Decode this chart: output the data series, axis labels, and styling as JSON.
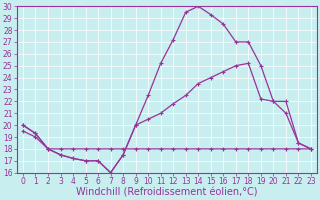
{
  "title": "",
  "xlabel": "Windchill (Refroidissement éolien,°C)",
  "ylabel": "",
  "bg_color": "#c8eef0",
  "line_color": "#993399",
  "grid_color": "#ffffff",
  "xlim": [
    -0.5,
    23.5
  ],
  "ylim": [
    16,
    30
  ],
  "xticks": [
    0,
    1,
    2,
    3,
    4,
    5,
    6,
    7,
    8,
    9,
    10,
    11,
    12,
    13,
    14,
    15,
    16,
    17,
    18,
    19,
    20,
    21,
    22,
    23
  ],
  "yticks": [
    16,
    17,
    18,
    19,
    20,
    21,
    22,
    23,
    24,
    25,
    26,
    27,
    28,
    29,
    30
  ],
  "line1_x": [
    0,
    1,
    2,
    3,
    4,
    5,
    6,
    7,
    8,
    9,
    10,
    11,
    12,
    13,
    14,
    15,
    16,
    17,
    18,
    19,
    20,
    21,
    22,
    23
  ],
  "line1_y": [
    20.0,
    19.3,
    18.0,
    17.5,
    17.2,
    17.0,
    17.0,
    16.0,
    17.5,
    20.0,
    22.5,
    25.2,
    27.2,
    29.5,
    30.0,
    29.3,
    28.5,
    27.0,
    27.0,
    25.0,
    22.0,
    21.0,
    18.5,
    18.0
  ],
  "line2_x": [
    0,
    1,
    2,
    3,
    4,
    5,
    6,
    7,
    8,
    9,
    10,
    11,
    12,
    13,
    14,
    15,
    16,
    17,
    18,
    19,
    20,
    21,
    22,
    23
  ],
  "line2_y": [
    20.0,
    19.3,
    18.0,
    17.5,
    17.2,
    17.0,
    17.0,
    16.0,
    17.5,
    20.0,
    20.5,
    21.0,
    21.8,
    22.5,
    23.5,
    24.0,
    24.5,
    25.0,
    25.2,
    22.2,
    22.0,
    22.0,
    18.5,
    18.0
  ],
  "line3_x": [
    0,
    1,
    2,
    3,
    4,
    5,
    6,
    7,
    8,
    9,
    10,
    11,
    12,
    13,
    14,
    15,
    16,
    17,
    18,
    19,
    20,
    21,
    22,
    23
  ],
  "line3_y": [
    19.5,
    19.0,
    18.0,
    18.0,
    18.0,
    18.0,
    18.0,
    18.0,
    18.0,
    18.0,
    18.0,
    18.0,
    18.0,
    18.0,
    18.0,
    18.0,
    18.0,
    18.0,
    18.0,
    18.0,
    18.0,
    18.0,
    18.0,
    18.0
  ],
  "marker": "+",
  "markersize": 3,
  "linewidth": 0.9,
  "xlabel_fontsize": 7,
  "tick_fontsize": 5.5
}
